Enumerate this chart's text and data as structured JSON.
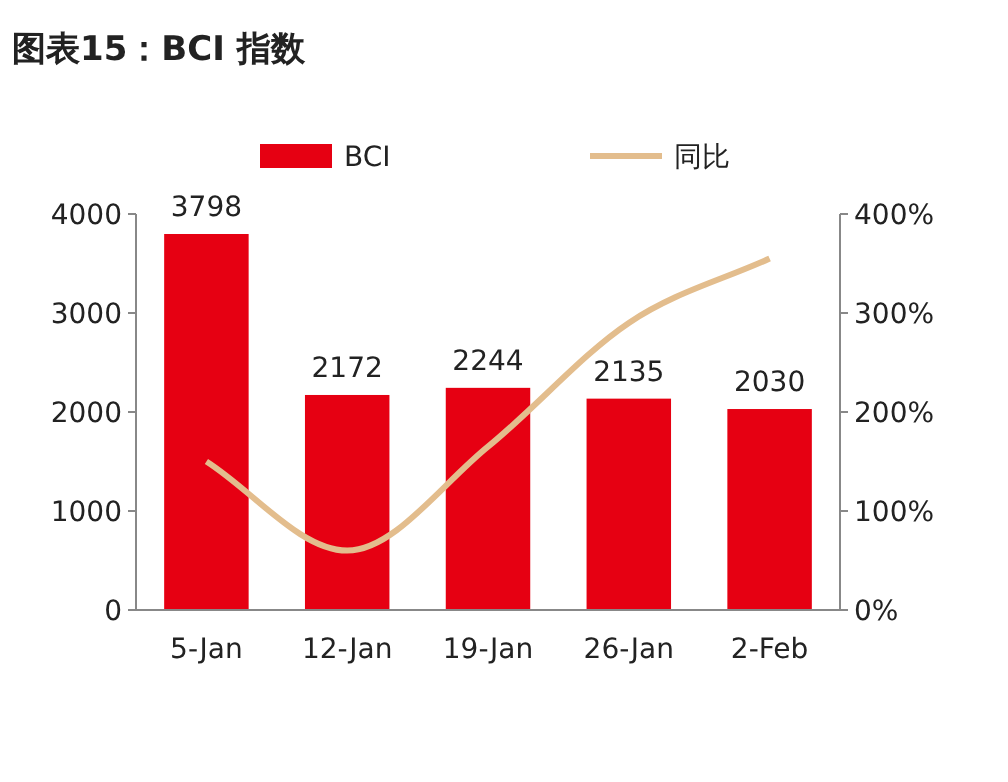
{
  "chart_data": {
    "type": "bar",
    "title": "图表15：BCI 指数",
    "categories": [
      "5-Jan",
      "12-Jan",
      "19-Jan",
      "26-Jan",
      "2-Feb"
    ],
    "series": [
      {
        "name": "BCI",
        "color": "#e60012",
        "values": [
          3798,
          2172,
          2244,
          2135,
          2030
        ],
        "value_labels": [
          "3798",
          "2172",
          "2244",
          "2135",
          "2030"
        ]
      },
      {
        "name": "同比",
        "type": "line",
        "axis": "y2",
        "color": "#e3bd8d",
        "values": [
          150,
          60,
          165,
          290,
          355
        ]
      }
    ],
    "ylim": [
      0,
      4000
    ],
    "yticks": [
      0,
      1000,
      2000,
      3000,
      4000
    ],
    "y2lim": [
      0,
      400
    ],
    "y2ticks": [
      {
        "value": 0,
        "label": "0%"
      },
      {
        "value": 100,
        "label": "100%"
      },
      {
        "value": 200,
        "label": "200%"
      },
      {
        "value": 300,
        "label": "300%"
      },
      {
        "value": 400,
        "label": "400%"
      }
    ],
    "legend": "top",
    "grid": false,
    "marker": "none"
  }
}
